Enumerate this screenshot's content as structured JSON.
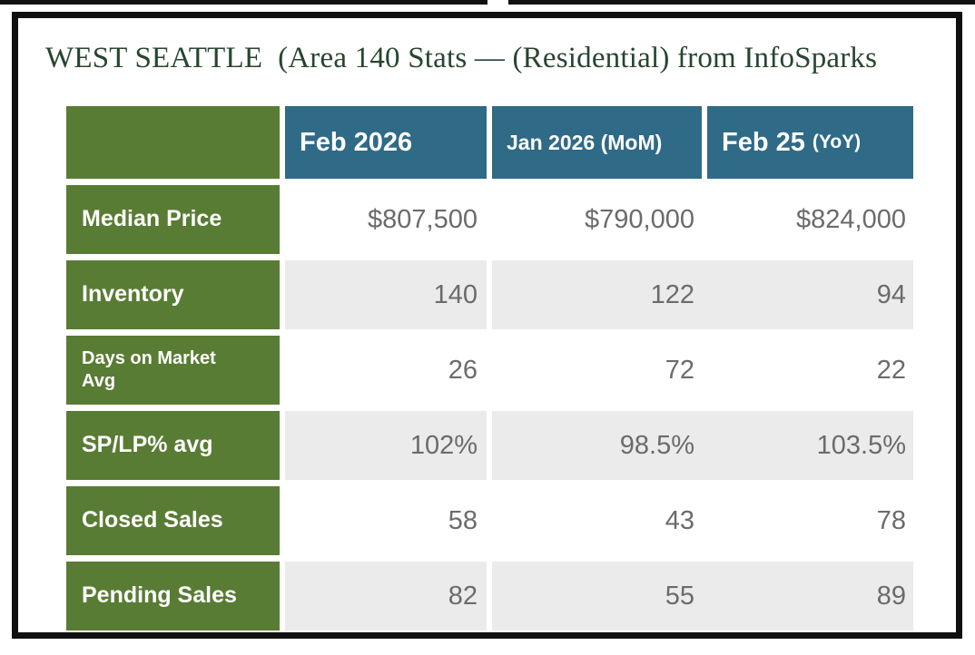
{
  "page": {
    "title": "WEST SEATTLE  (Area 140 Stats — (Residential) from InfoSparks"
  },
  "colors": {
    "label_green": "#597c34",
    "header_teal": "#2f6a87",
    "alt_row_gray": "#ebebeb",
    "value_text": "#6b6b6b",
    "title_text": "#27452f",
    "frame_border": "#101010"
  },
  "table": {
    "header": {
      "col1": "Feb 2026",
      "col2": "Jan 2026 (MoM)",
      "col3_main": "Feb 25",
      "col3_suffix": "(YoY)"
    },
    "rows": [
      {
        "label": "Median Price",
        "values": [
          "$807,500",
          "$790,000",
          "$824,000"
        ]
      },
      {
        "label": "Inventory",
        "values": [
          "140",
          "122",
          "94"
        ]
      },
      {
        "label": "Days on Market\nAvg",
        "values": [
          "26",
          "72",
          "22"
        ]
      },
      {
        "label": "SP/LP% avg",
        "values": [
          "102%",
          "98.5%",
          "103.5%"
        ]
      },
      {
        "label": "Closed Sales",
        "values": [
          "58",
          "43",
          "78"
        ]
      },
      {
        "label": "Pending Sales",
        "values": [
          "82",
          "55",
          "89"
        ]
      }
    ]
  }
}
